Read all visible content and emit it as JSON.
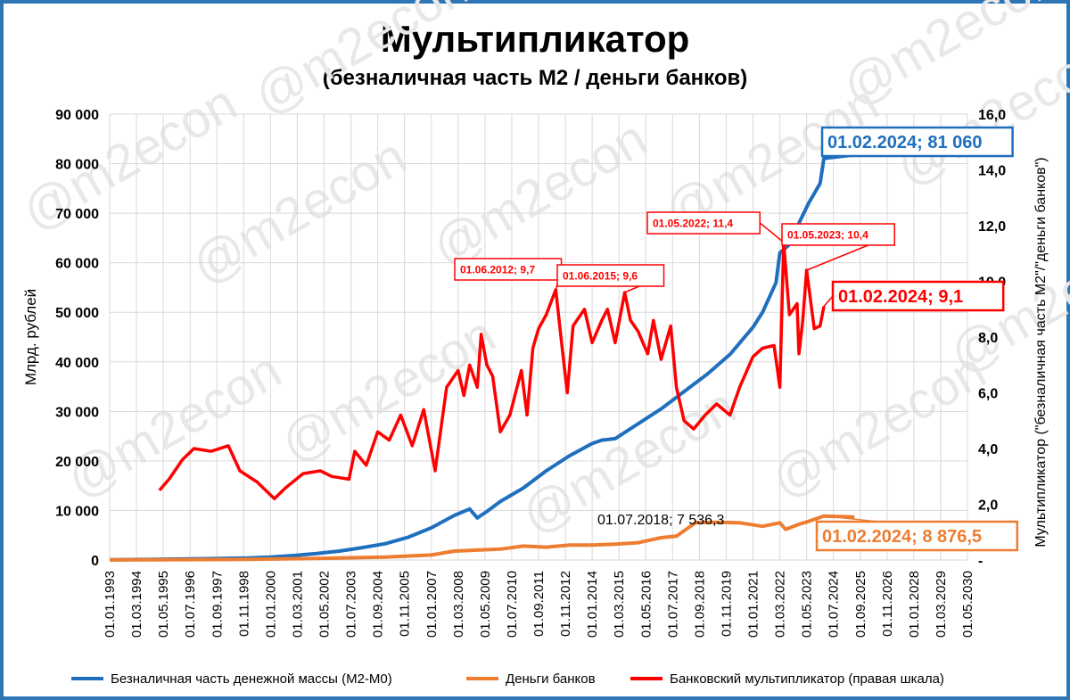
{
  "title": "Мультипликатор",
  "subtitle": "(безналичная часть М2 / деньги банков)",
  "colors": {
    "m2": "#1f6fbf",
    "bank": "#ed7d31",
    "mult": "#ff0000",
    "frame": "#2e75b6",
    "grid": "#d9d9d9",
    "watermark": "#e8e8e8"
  },
  "watermark_text": "@m2econ",
  "legend": [
    {
      "name": "Безналичная часть денежной массы (М2-М0)",
      "color": "#1f6fbf"
    },
    {
      "name": "Деньги банков",
      "color": "#ed7d31"
    },
    {
      "name": "Банковский мультипликатор (правая  шкала)",
      "color": "#ff0000"
    }
  ],
  "chart_data": {
    "type": "line",
    "title": "Мультипликатор",
    "subtitle": "(безналичная часть М2 / деньги банков)",
    "ylabel": "Млрд. рублей",
    "y2label": "Мультипликатор (\"безналичная часть М2\"/\"деньги банков\")",
    "ylim": [
      0,
      90000
    ],
    "y2lim": [
      0,
      16
    ],
    "yticks": [
      "0",
      "10 000",
      "20 000",
      "30 000",
      "40 000",
      "50 000",
      "60 000",
      "70 000",
      "80 000",
      "90 000"
    ],
    "y2ticks": [
      "-",
      "2,0",
      "4,0",
      "6,0",
      "8,0",
      "10,0",
      "12,0",
      "14,0",
      "16,0"
    ],
    "xlim": [
      "1993-01",
      "2030-05"
    ],
    "xticks": [
      "01.01.1993",
      "01.03.1994",
      "01.05.1995",
      "01.07.1996",
      "01.09.1997",
      "01.11.1998",
      "01.01.2000",
      "01.03.2001",
      "01.05.2002",
      "01.07.2003",
      "01.09.2004",
      "01.11.2005",
      "01.01.2007",
      "01.03.2008",
      "01.05.2009",
      "01.07.2010",
      "01.09.2011",
      "01.11.2012",
      "01.01.2014",
      "01.03.2015",
      "01.05.2016",
      "01.07.2017",
      "01.09.2018",
      "01.11.2019",
      "01.01.2021",
      "01.03.2022",
      "01.05.2023",
      "01.07.2024",
      "01.09.2025",
      "01.11.2026",
      "01.01.2028",
      "01.03.2029",
      "01.05.2030"
    ],
    "grid": true,
    "legend_position": "bottom",
    "series": [
      {
        "name": "Безналичная часть денежной массы (М2-М0)",
        "axis": "left",
        "points": [
          [
            "1993-01",
            30
          ],
          [
            "1995-01",
            120
          ],
          [
            "1997-01",
            250
          ],
          [
            "1999-01",
            400
          ],
          [
            "2000-01",
            600
          ],
          [
            "2001-01",
            900
          ],
          [
            "2002-01",
            1300
          ],
          [
            "2003-01",
            1800
          ],
          [
            "2004-01",
            2500
          ],
          [
            "2005-01",
            3300
          ],
          [
            "2006-01",
            4600
          ],
          [
            "2007-01",
            6500
          ],
          [
            "2008-01",
            9000
          ],
          [
            "2008-09",
            10300
          ],
          [
            "2009-01",
            8500
          ],
          [
            "2009-06",
            9800
          ],
          [
            "2010-01",
            11800
          ],
          [
            "2011-01",
            14500
          ],
          [
            "2012-01",
            18000
          ],
          [
            "2013-01",
            21000
          ],
          [
            "2014-01",
            23500
          ],
          [
            "2014-06",
            24200
          ],
          [
            "2015-01",
            24500
          ],
          [
            "2016-01",
            27500
          ],
          [
            "2017-01",
            30500
          ],
          [
            "2018-01",
            34000
          ],
          [
            "2019-01",
            37500
          ],
          [
            "2020-01",
            41500
          ],
          [
            "2021-01",
            47000
          ],
          [
            "2021-06",
            50000
          ],
          [
            "2022-01",
            56000
          ],
          [
            "2022-03",
            62000
          ],
          [
            "2022-09",
            64000
          ],
          [
            "2023-01",
            68000
          ],
          [
            "2023-06",
            72000
          ],
          [
            "2023-12",
            76000
          ],
          [
            "2024-02",
            81060
          ],
          [
            "2025-06",
            81800
          ]
        ]
      },
      {
        "name": "Деньги банков",
        "axis": "left",
        "points": [
          [
            "1993-01",
            10
          ],
          [
            "1996-01",
            80
          ],
          [
            "1999-01",
            150
          ],
          [
            "2002-01",
            300
          ],
          [
            "2005-01",
            600
          ],
          [
            "2007-01",
            1000
          ],
          [
            "2008-01",
            1800
          ],
          [
            "2009-01",
            2000
          ],
          [
            "2010-01",
            2200
          ],
          [
            "2011-01",
            2800
          ],
          [
            "2012-01",
            2600
          ],
          [
            "2013-01",
            3000
          ],
          [
            "2014-01",
            3000
          ],
          [
            "2015-01",
            3200
          ],
          [
            "2016-01",
            3500
          ],
          [
            "2017-01",
            4500
          ],
          [
            "2017-09",
            4800
          ],
          [
            "2018-07",
            7536.3
          ],
          [
            "2019-06",
            7600
          ],
          [
            "2020-06",
            7500
          ],
          [
            "2021-06",
            6800
          ],
          [
            "2022-03",
            7500
          ],
          [
            "2022-06",
            6200
          ],
          [
            "2023-01",
            7200
          ],
          [
            "2023-06",
            7800
          ],
          [
            "2024-02",
            8876.5
          ],
          [
            "2025-06",
            8700
          ]
        ]
      },
      {
        "name": "Банковский мультипликатор (правая  шкала)",
        "axis": "right",
        "points": [
          [
            "1995-03",
            2.5
          ],
          [
            "1995-08",
            2.9
          ],
          [
            "1996-03",
            3.6
          ],
          [
            "1996-09",
            4.0
          ],
          [
            "1997-06",
            3.9
          ],
          [
            "1998-03",
            4.1
          ],
          [
            "1998-09",
            3.2
          ],
          [
            "1999-06",
            2.8
          ],
          [
            "2000-03",
            2.2
          ],
          [
            "2000-09",
            2.6
          ],
          [
            "2001-06",
            3.1
          ],
          [
            "2002-03",
            3.2
          ],
          [
            "2002-09",
            3.0
          ],
          [
            "2003-06",
            2.9
          ],
          [
            "2003-09",
            3.9
          ],
          [
            "2004-03",
            3.4
          ],
          [
            "2004-09",
            4.6
          ],
          [
            "2005-03",
            4.3
          ],
          [
            "2005-09",
            5.2
          ],
          [
            "2006-03",
            4.1
          ],
          [
            "2006-09",
            5.4
          ],
          [
            "2007-03",
            3.2
          ],
          [
            "2007-09",
            6.2
          ],
          [
            "2008-03",
            6.8
          ],
          [
            "2008-06",
            5.9
          ],
          [
            "2008-09",
            7.0
          ],
          [
            "2009-01",
            6.2
          ],
          [
            "2009-03",
            8.1
          ],
          [
            "2009-06",
            7.0
          ],
          [
            "2009-09",
            6.6
          ],
          [
            "2010-01",
            4.6
          ],
          [
            "2010-06",
            5.2
          ],
          [
            "2010-12",
            6.8
          ],
          [
            "2011-03",
            5.2
          ],
          [
            "2011-06",
            7.6
          ],
          [
            "2011-09",
            8.3
          ],
          [
            "2012-01",
            8.8
          ],
          [
            "2012-06",
            9.7
          ],
          [
            "2012-09",
            7.8
          ],
          [
            "2012-12",
            6.0
          ],
          [
            "2013-03",
            8.4
          ],
          [
            "2013-09",
            9.0
          ],
          [
            "2014-01",
            7.8
          ],
          [
            "2014-06",
            8.6
          ],
          [
            "2014-09",
            9.0
          ],
          [
            "2015-01",
            7.8
          ],
          [
            "2015-06",
            9.6
          ],
          [
            "2015-09",
            8.6
          ],
          [
            "2016-01",
            8.2
          ],
          [
            "2016-06",
            7.4
          ],
          [
            "2016-09",
            8.6
          ],
          [
            "2017-01",
            7.2
          ],
          [
            "2017-06",
            8.4
          ],
          [
            "2017-09",
            6.2
          ],
          [
            "2018-01",
            5.0
          ],
          [
            "2018-06",
            4.7
          ],
          [
            "2018-12",
            5.2
          ],
          [
            "2019-06",
            5.6
          ],
          [
            "2020-01",
            5.2
          ],
          [
            "2020-06",
            6.2
          ],
          [
            "2021-01",
            7.3
          ],
          [
            "2021-06",
            7.6
          ],
          [
            "2021-12",
            7.7
          ],
          [
            "2022-03",
            6.2
          ],
          [
            "2022-05",
            11.4
          ],
          [
            "2022-08",
            8.8
          ],
          [
            "2022-12",
            9.2
          ],
          [
            "2023-01",
            7.4
          ],
          [
            "2023-03",
            8.6
          ],
          [
            "2023-05",
            10.4
          ],
          [
            "2023-09",
            8.3
          ],
          [
            "2023-12",
            8.4
          ],
          [
            "2024-02",
            9.1
          ]
        ]
      }
    ],
    "annotations": [
      {
        "label": "01.02.2024; 81 060",
        "series": "Безналичная часть денежной массы (М2-М0)",
        "x": "2024-02",
        "y": 81060,
        "color": "#1f6fbf",
        "boxed": true
      },
      {
        "label": "01.02.2024; 8 876,5",
        "series": "Деньги банков",
        "x": "2024-02",
        "y": 8876.5,
        "color": "#ed7d31",
        "boxed": true
      },
      {
        "label": "01.07.2018; 7 536,3",
        "series": "Деньги банков",
        "x": "2018-07",
        "y": 7536.3,
        "color": "#000000",
        "boxed": false
      },
      {
        "label": "01.02.2024;  9,1",
        "series": "Банковский мультипликатор (правая  шкала)",
        "x": "2024-02",
        "y": 9.1,
        "color": "#ff0000",
        "boxed": true
      },
      {
        "label": "01.06.2012;  9,7",
        "series": "Банковский мультипликатор (правая  шкала)",
        "x": "2012-06",
        "y": 9.7,
        "color": "#ff0000",
        "boxed": true
      },
      {
        "label": "01.06.2015;  9,6",
        "series": "Банковский мультипликатор (правая  шкала)",
        "x": "2015-06",
        "y": 9.6,
        "color": "#ff0000",
        "boxed": true
      },
      {
        "label": "01.05.2022;  11,4",
        "series": "Банковский мультипликатор (правая  шкала)",
        "x": "2022-05",
        "y": 11.4,
        "color": "#ff0000",
        "boxed": true
      },
      {
        "label": "01.05.2023;  10,4",
        "series": "Банковский мультипликатор (правая  шкала)",
        "x": "2023-05",
        "y": 10.4,
        "color": "#ff0000",
        "boxed": true
      }
    ]
  }
}
